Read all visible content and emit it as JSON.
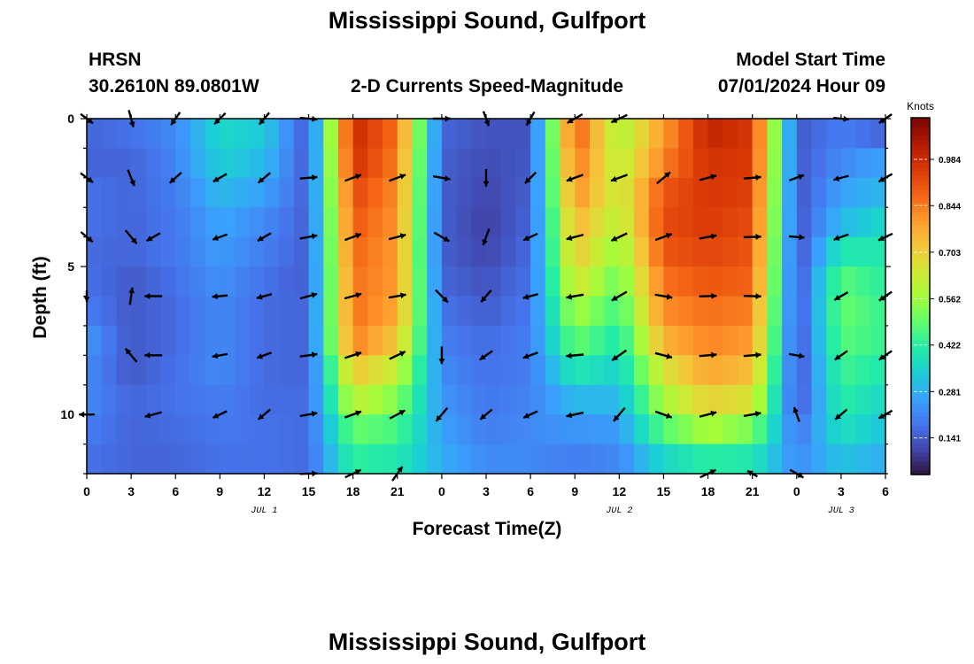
{
  "header": {
    "title": "Mississippi Sound, Gulfport",
    "station_code": "HRSN",
    "coordinates": "30.2610N  89.0801W",
    "subtitle": "2-D Currents Speed-Magnitude",
    "model_start_label": "Model Start Time",
    "model_start_value": "07/01/2024 Hour 09",
    "repeated_title": "Mississippi Sound, Gulfport"
  },
  "colors": {
    "colormap": [
      "#30123b",
      "#4145ab",
      "#4675ed",
      "#39a2fc",
      "#1bcfd4",
      "#24eca6",
      "#61fc6c",
      "#a4fc3b",
      "#d1e834",
      "#f3c63a",
      "#fe9b2d",
      "#f36315",
      "#d93806",
      "#b11901",
      "#7a0402"
    ],
    "arrow": "#000000"
  },
  "chart_data": {
    "type": "heatmap",
    "title": "Mississippi Sound, Gulfport",
    "subtitle": "2-D Currents Speed-Magnitude",
    "xlabel": "Forecast Time(Z)",
    "ylabel": "Depth (ft)",
    "x_tick_labels": [
      "0",
      "3",
      "6",
      "9",
      "12",
      "15",
      "18",
      "21",
      "0",
      "3",
      "6",
      "9",
      "12",
      "15",
      "18",
      "21",
      "0",
      "3",
      "6"
    ],
    "x_range_hours": [
      0,
      54
    ],
    "date_labels": [
      {
        "text": "JUL 1",
        "hour": 12
      },
      {
        "text": "JUL 2",
        "hour": 36
      },
      {
        "text": "JUL 3",
        "hour": 51
      }
    ],
    "y_tick_labels": [
      "0",
      "5",
      "10"
    ],
    "y_major_ticks": [
      0,
      5,
      10
    ],
    "y_minor_step": 1,
    "ylim": [
      0,
      12
    ],
    "y_inverted": true,
    "colorbar": {
      "unit": "Knots",
      "tick_labels": [
        "0.141",
        "0.281",
        "0.422",
        "0.562",
        "0.703",
        "0.844",
        "0.984"
      ],
      "range": [
        0.03,
        1.11
      ]
    },
    "depth_rows": [
      0.5,
      1.5,
      2.5,
      3.5,
      4.5,
      5.5,
      6.5,
      7.5,
      8.5,
      9.5,
      10.5,
      11.5
    ],
    "hour_columns": [
      0,
      3,
      6,
      9,
      12,
      15,
      18,
      21,
      24,
      27,
      30,
      33,
      36,
      39,
      42,
      45,
      48,
      51,
      54
    ],
    "speed_profiles": [
      [
        0.16,
        0.16,
        0.18,
        0.18,
        0.17,
        0.18,
        0.2,
        0.24,
        0.22,
        0.22,
        0.2,
        0.18
      ],
      [
        0.18,
        0.16,
        0.16,
        0.16,
        0.16,
        0.14,
        0.14,
        0.14,
        0.14,
        0.16,
        0.16,
        0.16
      ],
      [
        0.22,
        0.21,
        0.2,
        0.19,
        0.19,
        0.18,
        0.17,
        0.17,
        0.18,
        0.18,
        0.17,
        0.16
      ],
      [
        0.36,
        0.34,
        0.3,
        0.27,
        0.25,
        0.23,
        0.22,
        0.22,
        0.22,
        0.2,
        0.19,
        0.18
      ],
      [
        0.33,
        0.3,
        0.26,
        0.22,
        0.2,
        0.18,
        0.17,
        0.17,
        0.17,
        0.17,
        0.18,
        0.18
      ],
      [
        0.14,
        0.14,
        0.15,
        0.15,
        0.15,
        0.15,
        0.16,
        0.16,
        0.16,
        0.17,
        0.17,
        0.17
      ],
      [
        0.99,
        0.97,
        0.93,
        0.9,
        0.88,
        0.86,
        0.86,
        0.84,
        0.72,
        0.62,
        0.5,
        0.43
      ],
      [
        0.86,
        0.84,
        0.82,
        0.81,
        0.8,
        0.8,
        0.78,
        0.72,
        0.62,
        0.53,
        0.46,
        0.4
      ],
      [
        0.16,
        0.15,
        0.15,
        0.15,
        0.15,
        0.16,
        0.18,
        0.2,
        0.22,
        0.24,
        0.26,
        0.28
      ],
      [
        0.13,
        0.12,
        0.11,
        0.1,
        0.11,
        0.13,
        0.15,
        0.17,
        0.18,
        0.19,
        0.2,
        0.22
      ],
      [
        0.13,
        0.14,
        0.15,
        0.16,
        0.17,
        0.18,
        0.19,
        0.2,
        0.2,
        0.21,
        0.22,
        0.22
      ],
      [
        0.9,
        0.86,
        0.82,
        0.76,
        0.72,
        0.66,
        0.58,
        0.5,
        0.4,
        0.3,
        0.24,
        0.2
      ],
      [
        0.58,
        0.6,
        0.62,
        0.6,
        0.55,
        0.5,
        0.45,
        0.4,
        0.35,
        0.3,
        0.25,
        0.22
      ],
      [
        0.8,
        0.84,
        0.9,
        0.92,
        0.9,
        0.86,
        0.82,
        0.76,
        0.66,
        0.58,
        0.48,
        0.36
      ],
      [
        1.0,
        0.97,
        0.96,
        0.95,
        0.93,
        0.9,
        0.86,
        0.83,
        0.78,
        0.7,
        0.58,
        0.42
      ],
      [
        0.96,
        0.95,
        0.94,
        0.92,
        0.9,
        0.88,
        0.84,
        0.8,
        0.74,
        0.66,
        0.52,
        0.4
      ],
      [
        0.14,
        0.14,
        0.13,
        0.13,
        0.12,
        0.12,
        0.12,
        0.12,
        0.12,
        0.13,
        0.18,
        0.22
      ],
      [
        0.2,
        0.22,
        0.26,
        0.3,
        0.4,
        0.48,
        0.5,
        0.48,
        0.45,
        0.42,
        0.38,
        0.32
      ],
      [
        0.16,
        0.26,
        0.3,
        0.36,
        0.4,
        0.42,
        0.44,
        0.44,
        0.4,
        0.36,
        0.32,
        0.28
      ]
    ],
    "current_arrows": [
      {
        "hour": 0,
        "depth": 0,
        "dir": 127,
        "len": 0.8
      },
      {
        "hour": 0,
        "depth": 2,
        "dir": 127,
        "len": 0.8
      },
      {
        "hour": 0,
        "depth": 4,
        "dir": 130,
        "len": 0.8
      },
      {
        "hour": 0,
        "depth": 6,
        "dir": 180,
        "len": 0.6
      },
      {
        "hour": 0,
        "depth": 10,
        "dir": 270,
        "len": 0.8
      },
      {
        "hour": 3,
        "depth": 0,
        "dir": 165,
        "len": 0.9
      },
      {
        "hour": 3,
        "depth": 2,
        "dir": 158,
        "len": 0.9
      },
      {
        "hour": 3,
        "depth": 4,
        "dir": 140,
        "len": 0.9
      },
      {
        "hour": 3,
        "depth": 6,
        "dir": 8,
        "len": 0.9
      },
      {
        "hour": 3,
        "depth": 8,
        "dir": 320,
        "len": 0.9
      },
      {
        "hour": 4.5,
        "depth": 4,
        "dir": 240,
        "len": 0.8
      },
      {
        "hour": 4.5,
        "depth": 6,
        "dir": 270,
        "len": 0.9
      },
      {
        "hour": 4.5,
        "depth": 8,
        "dir": 270,
        "len": 0.9
      },
      {
        "hour": 4.5,
        "depth": 10,
        "dir": 255,
        "len": 0.9
      },
      {
        "hour": 6,
        "depth": 0,
        "dir": 215,
        "len": 0.8
      },
      {
        "hour": 6,
        "depth": 2,
        "dir": 228,
        "len": 0.8
      },
      {
        "hour": 9,
        "depth": 0,
        "dir": 225,
        "len": 0.8
      },
      {
        "hour": 9,
        "depth": 2,
        "dir": 240,
        "len": 0.8
      },
      {
        "hour": 9,
        "depth": 4,
        "dir": 250,
        "len": 0.8
      },
      {
        "hour": 9,
        "depth": 6,
        "dir": 265,
        "len": 0.8
      },
      {
        "hour": 9,
        "depth": 8,
        "dir": 260,
        "len": 0.8
      },
      {
        "hour": 9,
        "depth": 10,
        "dir": 245,
        "len": 0.8
      },
      {
        "hour": 12,
        "depth": 0,
        "dir": 220,
        "len": 0.8
      },
      {
        "hour": 12,
        "depth": 2,
        "dir": 230,
        "len": 0.8
      },
      {
        "hour": 12,
        "depth": 4,
        "dir": 240,
        "len": 0.8
      },
      {
        "hour": 12,
        "depth": 6,
        "dir": 255,
        "len": 0.8
      },
      {
        "hour": 12,
        "depth": 8,
        "dir": 250,
        "len": 0.8
      },
      {
        "hour": 12,
        "depth": 10,
        "dir": 230,
        "len": 0.8
      },
      {
        "hour": 15,
        "depth": 0,
        "dir": 95,
        "len": 0.9
      },
      {
        "hour": 15,
        "depth": 2,
        "dir": 85,
        "len": 0.9
      },
      {
        "hour": 15,
        "depth": 4,
        "dir": 80,
        "len": 0.9
      },
      {
        "hour": 15,
        "depth": 6,
        "dir": 75,
        "len": 0.9
      },
      {
        "hour": 15,
        "depth": 8,
        "dir": 82,
        "len": 0.9
      },
      {
        "hour": 15,
        "depth": 10,
        "dir": 80,
        "len": 0.9
      },
      {
        "hour": 15,
        "depth": 12,
        "dir": 88,
        "len": 0.9
      },
      {
        "hour": 18,
        "depth": 2,
        "dir": 70,
        "len": 0.9
      },
      {
        "hour": 18,
        "depth": 4,
        "dir": 70,
        "len": 0.9
      },
      {
        "hour": 18,
        "depth": 6,
        "dir": 75,
        "len": 0.9
      },
      {
        "hour": 18,
        "depth": 8,
        "dir": 72,
        "len": 0.9
      },
      {
        "hour": 18,
        "depth": 10,
        "dir": 70,
        "len": 0.9
      },
      {
        "hour": 18,
        "depth": 12,
        "dir": 65,
        "len": 0.9
      },
      {
        "hour": 21,
        "depth": 2,
        "dir": 70,
        "len": 0.9
      },
      {
        "hour": 21,
        "depth": 4,
        "dir": 75,
        "len": 0.9
      },
      {
        "hour": 21,
        "depth": 6,
        "dir": 80,
        "len": 0.9
      },
      {
        "hour": 21,
        "depth": 8,
        "dir": 65,
        "len": 0.9
      },
      {
        "hour": 21,
        "depth": 10,
        "dir": 62,
        "len": 0.9
      },
      {
        "hour": 21,
        "depth": 12,
        "dir": 35,
        "len": 0.9
      },
      {
        "hour": 24,
        "depth": 0,
        "dir": 90,
        "len": 0.9
      },
      {
        "hour": 24,
        "depth": 2,
        "dir": 100,
        "len": 0.9
      },
      {
        "hour": 24,
        "depth": 4,
        "dir": 120,
        "len": 0.9
      },
      {
        "hour": 24,
        "depth": 6,
        "dir": 135,
        "len": 0.9
      },
      {
        "hour": 24,
        "depth": 8,
        "dir": 180,
        "len": 0.9
      },
      {
        "hour": 24,
        "depth": 10,
        "dir": 220,
        "len": 0.9
      },
      {
        "hour": 27,
        "depth": 0,
        "dir": 160,
        "len": 0.8
      },
      {
        "hour": 27,
        "depth": 2,
        "dir": 180,
        "len": 0.9
      },
      {
        "hour": 27,
        "depth": 4,
        "dir": 200,
        "len": 0.9
      },
      {
        "hour": 27,
        "depth": 6,
        "dir": 220,
        "len": 0.8
      },
      {
        "hour": 27,
        "depth": 8,
        "dir": 235,
        "len": 0.8
      },
      {
        "hour": 27,
        "depth": 10,
        "dir": 230,
        "len": 0.8
      },
      {
        "hour": 30,
        "depth": 0,
        "dir": 210,
        "len": 0.8
      },
      {
        "hour": 30,
        "depth": 2,
        "dir": 225,
        "len": 0.8
      },
      {
        "hour": 30,
        "depth": 4,
        "dir": 245,
        "len": 0.8
      },
      {
        "hour": 30,
        "depth": 6,
        "dir": 255,
        "len": 0.8
      },
      {
        "hour": 30,
        "depth": 8,
        "dir": 250,
        "len": 0.8
      },
      {
        "hour": 30,
        "depth": 10,
        "dir": 245,
        "len": 0.8
      },
      {
        "hour": 33,
        "depth": 0,
        "dir": 240,
        "len": 0.9
      },
      {
        "hour": 33,
        "depth": 2,
        "dir": 250,
        "len": 0.9
      },
      {
        "hour": 33,
        "depth": 4,
        "dir": 255,
        "len": 0.9
      },
      {
        "hour": 33,
        "depth": 6,
        "dir": 260,
        "len": 0.9
      },
      {
        "hour": 33,
        "depth": 8,
        "dir": 265,
        "len": 0.9
      },
      {
        "hour": 33,
        "depth": 10,
        "dir": 258,
        "len": 0.9
      },
      {
        "hour": 36,
        "depth": 0,
        "dir": 245,
        "len": 0.9
      },
      {
        "hour": 36,
        "depth": 2,
        "dir": 250,
        "len": 0.9
      },
      {
        "hour": 36,
        "depth": 4,
        "dir": 245,
        "len": 0.9
      },
      {
        "hour": 36,
        "depth": 6,
        "dir": 240,
        "len": 0.9
      },
      {
        "hour": 36,
        "depth": 8,
        "dir": 235,
        "len": 0.9
      },
      {
        "hour": 36,
        "depth": 10,
        "dir": 220,
        "len": 0.9
      },
      {
        "hour": 39,
        "depth": 2,
        "dir": 50,
        "len": 0.9
      },
      {
        "hour": 39,
        "depth": 4,
        "dir": 70,
        "len": 0.9
      },
      {
        "hour": 39,
        "depth": 6,
        "dir": 100,
        "len": 0.9
      },
      {
        "hour": 39,
        "depth": 8,
        "dir": 105,
        "len": 0.9
      },
      {
        "hour": 39,
        "depth": 10,
        "dir": 110,
        "len": 0.9
      },
      {
        "hour": 42,
        "depth": 2,
        "dir": 75,
        "len": 0.9
      },
      {
        "hour": 42,
        "depth": 4,
        "dir": 80,
        "len": 0.9
      },
      {
        "hour": 42,
        "depth": 6,
        "dir": 88,
        "len": 0.9
      },
      {
        "hour": 42,
        "depth": 8,
        "dir": 85,
        "len": 0.9
      },
      {
        "hour": 42,
        "depth": 10,
        "dir": 75,
        "len": 0.9
      },
      {
        "hour": 42,
        "depth": 12,
        "dir": 65,
        "len": 0.9
      },
      {
        "hour": 45,
        "depth": 2,
        "dir": 85,
        "len": 0.9
      },
      {
        "hour": 45,
        "depth": 4,
        "dir": 88,
        "len": 0.9
      },
      {
        "hour": 45,
        "depth": 6,
        "dir": 92,
        "len": 0.9
      },
      {
        "hour": 45,
        "depth": 8,
        "dir": 85,
        "len": 0.9
      },
      {
        "hour": 45,
        "depth": 10,
        "dir": 80,
        "len": 0.9
      },
      {
        "hour": 45,
        "depth": 12,
        "dir": 300,
        "len": 0.6
      },
      {
        "hour": 48,
        "depth": 2,
        "dir": 70,
        "len": 0.8
      },
      {
        "hour": 48,
        "depth": 4,
        "dir": 95,
        "len": 0.8
      },
      {
        "hour": 48,
        "depth": 8,
        "dir": 100,
        "len": 0.8
      },
      {
        "hour": 48,
        "depth": 10,
        "dir": 340,
        "len": 0.8
      },
      {
        "hour": 48,
        "depth": 12,
        "dir": 120,
        "len": 0.8
      },
      {
        "hour": 51,
        "depth": 0,
        "dir": 95,
        "len": 0.8
      },
      {
        "hour": 51,
        "depth": 2,
        "dir": 255,
        "len": 0.8
      },
      {
        "hour": 51,
        "depth": 4,
        "dir": 250,
        "len": 0.8
      },
      {
        "hour": 51,
        "depth": 6,
        "dir": 240,
        "len": 0.8
      },
      {
        "hour": 51,
        "depth": 8,
        "dir": 235,
        "len": 0.8
      },
      {
        "hour": 51,
        "depth": 10,
        "dir": 230,
        "len": 0.8
      },
      {
        "hour": 54,
        "depth": 0,
        "dir": 235,
        "len": 0.8
      },
      {
        "hour": 54,
        "depth": 2,
        "dir": 240,
        "len": 0.8
      },
      {
        "hour": 54,
        "depth": 4,
        "dir": 245,
        "len": 0.8
      },
      {
        "hour": 54,
        "depth": 6,
        "dir": 235,
        "len": 0.8
      },
      {
        "hour": 54,
        "depth": 8,
        "dir": 235,
        "len": 0.8
      },
      {
        "hour": 54,
        "depth": 10,
        "dir": 240,
        "len": 0.8
      }
    ]
  }
}
